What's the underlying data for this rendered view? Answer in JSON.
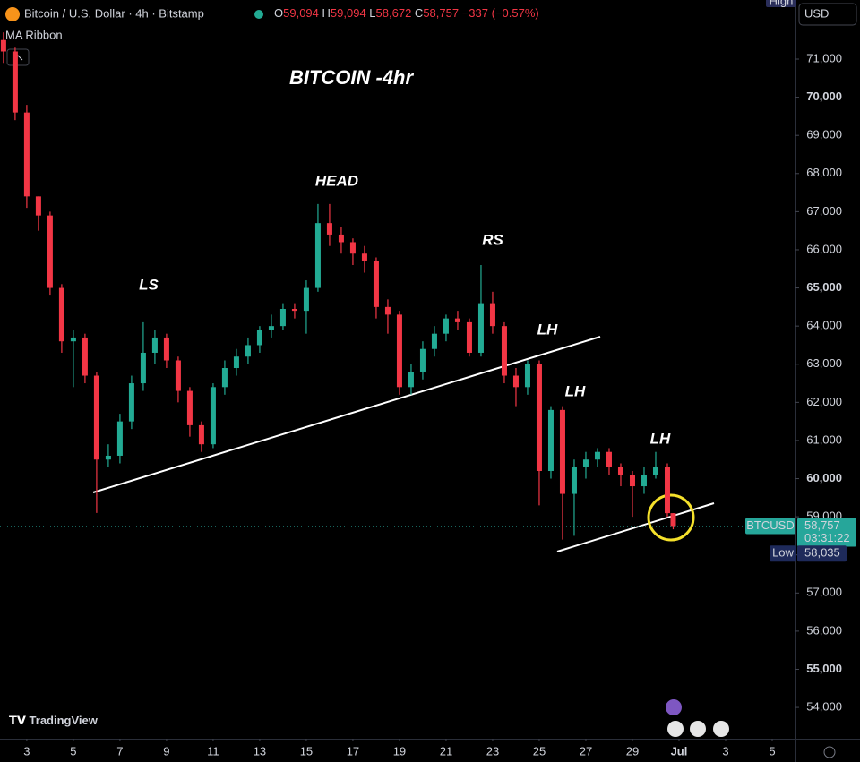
{
  "header": {
    "title": "Bitcoin / U.S. Dollar · 4h · Bitstamp",
    "open_label": "O",
    "open": "59,094",
    "high_label": "H",
    "high": "59,094",
    "low_label": "L",
    "low": "58,672",
    "close_label": "C",
    "close": "58,757",
    "change": "−337 (−0.57%)",
    "indicator": "MA Ribbon"
  },
  "scale": {
    "high_tag": "High",
    "currency": "USD",
    "symbol": "BTCUSD",
    "price": "58,757",
    "countdown": "03:31:22",
    "low_tag": "Low",
    "low_price": "58,035"
  },
  "brand": "TradingView",
  "chart_data": {
    "type": "candlestick",
    "up_color": "#22ab94",
    "down_color": "#f23645",
    "annotations": [
      "BITCOIN -4hr",
      "HEAD",
      "LS",
      "RS",
      "LH",
      "LH",
      "LH"
    ],
    "x": [
      2,
      2.5,
      3,
      3.5,
      4,
      4.5,
      5,
      5.5,
      6,
      6.5,
      7,
      7.5,
      8,
      8.5,
      9,
      9.5,
      10,
      10.5,
      11,
      11.5,
      12,
      12.5,
      13,
      13.5,
      14,
      14.5,
      15,
      15.5,
      16,
      16.5,
      17,
      17.5,
      18,
      18.5,
      19,
      19.5,
      20,
      20.5,
      21,
      21.5,
      22,
      22.5,
      23,
      23.5,
      24,
      24.5,
      25,
      25.5,
      26,
      26.5,
      27,
      27.5,
      28,
      28.5,
      29,
      29.5,
      30,
      30.5,
      30.75
    ],
    "open": [
      71500,
      71200,
      69600,
      67400,
      66900,
      65000,
      63600,
      63700,
      62700,
      60500,
      60600,
      61500,
      62500,
      63300,
      63700,
      63100,
      62300,
      61400,
      60900,
      62400,
      62900,
      63200,
      63500,
      63900,
      64000,
      64450,
      64400,
      65000,
      66700,
      66400,
      66200,
      65900,
      65700,
      64500,
      64300,
      62400,
      62800,
      63400,
      63800,
      64200,
      64100,
      63300,
      64600,
      64000,
      62700,
      62400,
      63000,
      60200,
      61800,
      59600,
      60300,
      60500,
      60700,
      60300,
      60100,
      59800,
      60100,
      60300,
      59094
    ],
    "high": [
      71700,
      71300,
      69800,
      67400,
      67000,
      65100,
      63900,
      63800,
      62800,
      60900,
      61700,
      62700,
      64100,
      63900,
      63800,
      63200,
      62400,
      61500,
      62500,
      63100,
      63400,
      63700,
      64000,
      64300,
      64600,
      64600,
      65200,
      67200,
      67200,
      66600,
      66300,
      66100,
      65800,
      64700,
      64400,
      63000,
      63600,
      64000,
      64300,
      64400,
      64200,
      65600,
      64900,
      64100,
      62900,
      63100,
      63100,
      61900,
      61900,
      60500,
      60700,
      60800,
      60800,
      60400,
      60200,
      60300,
      60700,
      60400,
      59094
    ],
    "low": [
      70900,
      69400,
      67100,
      66500,
      64800,
      63300,
      62400,
      62500,
      59100,
      60300,
      60400,
      61300,
      62300,
      63000,
      62900,
      62000,
      61100,
      60700,
      60800,
      62200,
      62700,
      63000,
      63300,
      63700,
      63900,
      64200,
      63800,
      64900,
      66100,
      65900,
      65600,
      65400,
      64200,
      63800,
      62200,
      62200,
      62600,
      63200,
      63600,
      63900,
      63200,
      63200,
      63800,
      62500,
      61900,
      62200,
      59300,
      60000,
      58400,
      58500,
      60000,
      60300,
      60100,
      59800,
      59000,
      59600,
      60000,
      59000,
      58672
    ],
    "close": [
      71200,
      69600,
      67400,
      66900,
      65000,
      63600,
      63700,
      62700,
      60500,
      60600,
      61500,
      62500,
      63300,
      63700,
      63100,
      62300,
      61400,
      60900,
      62400,
      62900,
      63200,
      63500,
      63900,
      64000,
      64450,
      64400,
      65000,
      66700,
      66400,
      66200,
      65900,
      65700,
      64500,
      64300,
      62400,
      62800,
      63400,
      63800,
      64200,
      64100,
      63300,
      64600,
      64000,
      62700,
      62400,
      63000,
      60200,
      61800,
      59600,
      60300,
      60500,
      60700,
      60300,
      60100,
      59800,
      60100,
      60300,
      59094,
      58757
    ],
    "ylim": [
      53180,
      72550
    ],
    "yticks": [
      {
        "value": 54000,
        "label": "54,000"
      },
      {
        "value": 55000,
        "label": "55,000"
      },
      {
        "value": 56000,
        "label": "56,000"
      },
      {
        "value": 57000,
        "label": "57,000"
      },
      {
        "value": 58000,
        "label": "58,000"
      },
      {
        "value": 59000,
        "label": "59,000"
      },
      {
        "value": 60000,
        "label": "60,000"
      },
      {
        "value": 61000,
        "label": "61,000"
      },
      {
        "value": 62000,
        "label": "62,000"
      },
      {
        "value": 63000,
        "label": "63,000"
      },
      {
        "value": 64000,
        "label": "64,000"
      },
      {
        "value": 65000,
        "label": "65,000"
      },
      {
        "value": 66000,
        "label": "66,000"
      },
      {
        "value": 67000,
        "label": "67,000"
      },
      {
        "value": 68000,
        "label": "68,000"
      },
      {
        "value": 69000,
        "label": "69,000"
      },
      {
        "value": 70000,
        "label": "70,000"
      },
      {
        "value": 71000,
        "label": "71,000"
      }
    ],
    "xlim": [
      1.85,
      36
    ],
    "xticks": [
      3,
      5,
      7,
      9,
      11,
      13,
      15,
      17,
      19,
      21,
      23,
      25,
      27,
      29,
      {
        "value": 31,
        "label": "Jul"
      },
      {
        "value": 33,
        "label": "3"
      },
      {
        "value": 35,
        "label": "5"
      }
    ],
    "last_price": 58757,
    "low_price": 58035
  }
}
